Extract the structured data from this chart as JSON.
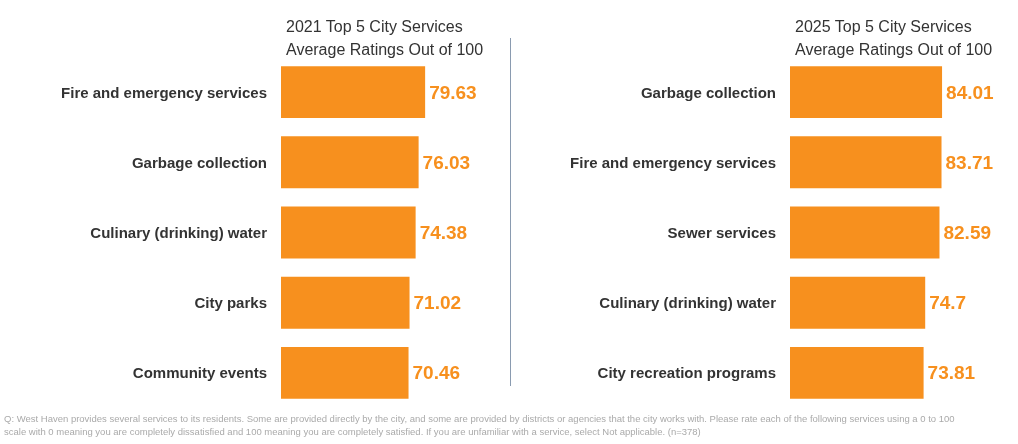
{
  "chart_data": [
    {
      "type": "bar",
      "orientation": "horizontal",
      "title": "2021 Top 5 City Services Average Ratings Out of 100",
      "categories": [
        "Fire and emergency services",
        "Garbage collection",
        "Culinary (drinking) water",
        "City parks",
        "Community events"
      ],
      "values": [
        79.63,
        76.03,
        74.38,
        71.02,
        70.46
      ],
      "color": "#f7901e",
      "data_labels": true,
      "tick_labels": "y",
      "annotations": [
        "Q: West Haven provides several services to its residents. Some are provided directly by the city, and some are provided by districts or agencies that the city works with. Please rate each of the following services using a 0 to 100 scale with 0 meaning you are completely dissatisfied and 100 meaning you are completely satisfied. If you are unfamiliar with a service, select Not applicable. (n=378)"
      ]
    },
    {
      "type": "bar",
      "orientation": "horizontal",
      "title": "2025 Top 5 City Services Average Ratings Out of 100",
      "categories": [
        "Garbage collection",
        "Fire and emergency services",
        "Sewer services",
        "Culinary (drinking) water",
        "City recreation programs"
      ],
      "values": [
        84.01,
        83.71,
        82.59,
        74.7,
        73.81
      ],
      "color": "#f7901e",
      "data_labels": true,
      "tick_labels": "y"
    }
  ]
}
